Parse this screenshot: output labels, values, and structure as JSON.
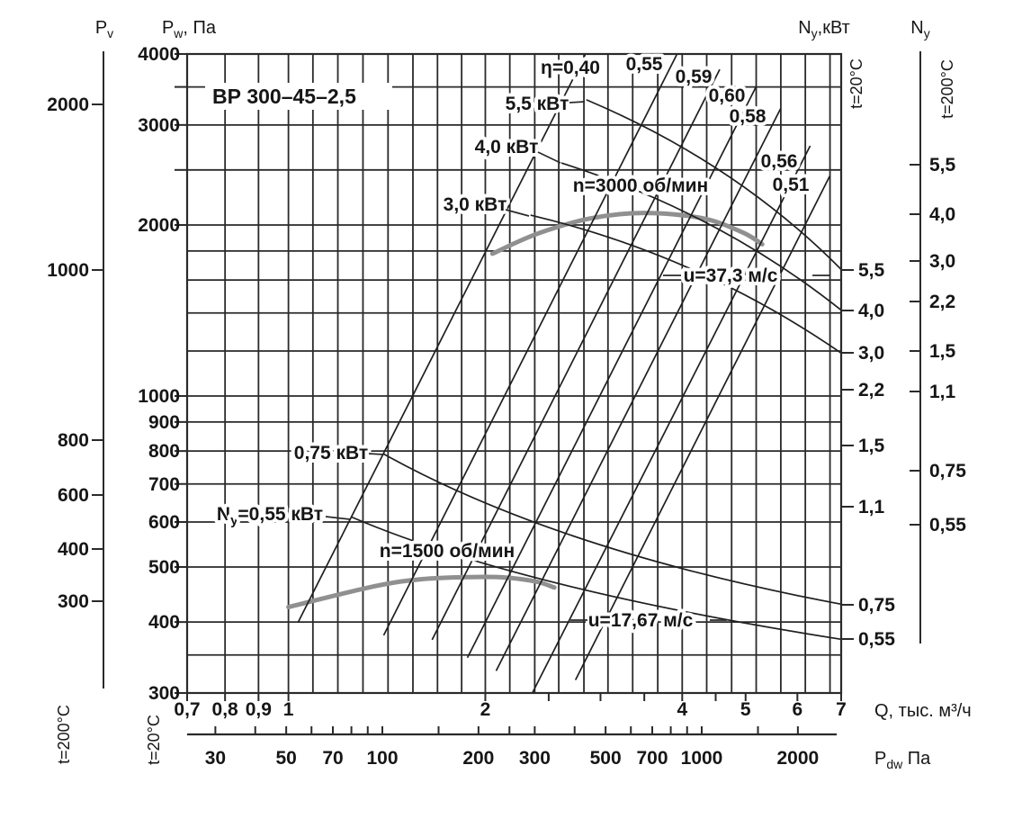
{
  "chart_title": "ВР 300–45–2,5",
  "temp_labels": {
    "t20": "t=20°C",
    "t200": "t=200°C"
  },
  "axis_titles": {
    "pv": {
      "base": "P",
      "sub": "v",
      "rest": ""
    },
    "pw": {
      "base": "P",
      "sub": "w",
      "rest": ", Па"
    },
    "ny20": {
      "base": "N",
      "sub": "y",
      "rest": ",кВт"
    },
    "ny200": {
      "base": "N",
      "sub": "y",
      "rest": ""
    },
    "q_label": "Q, тыс. м³/ч",
    "pdw": {
      "base": "P",
      "sub": "dw",
      "rest": " Па"
    }
  },
  "chart_data": {
    "type": "line",
    "grid": "log-log",
    "x_axis": {
      "label": "Q, тыс. м³/ч",
      "scale": "log",
      "range": [
        0.7,
        7
      ],
      "ticks": [
        "0,7",
        "0,8",
        "0,9",
        "1",
        "2",
        "4",
        "5",
        "6",
        "7"
      ],
      "tick_values": [
        0.7,
        0.8,
        0.9,
        1,
        2,
        4,
        5,
        6,
        7
      ]
    },
    "y_axis_pw": {
      "label": "Pw, Па",
      "condition": "t=20°C",
      "scale": "log",
      "range": [
        300,
        4000
      ],
      "ticks": [
        "4000",
        "3000",
        "2000",
        "1000",
        "900",
        "800",
        "700",
        "600",
        "500",
        "400",
        "300"
      ],
      "tick_values": [
        4000,
        3000,
        2000,
        1000,
        900,
        800,
        700,
        600,
        500,
        400,
        300
      ]
    },
    "y_axis_pv": {
      "label": "Pv",
      "condition": "t=200°C",
      "ticks": [
        "2000",
        "1000",
        "800",
        "600",
        "400",
        "300"
      ],
      "tick_values": [
        2000,
        1000,
        800,
        600,
        400,
        300
      ]
    },
    "y_axis_ny20": {
      "label": "Ny,кВт",
      "condition": "t=20°C",
      "ticks": [
        "5,5",
        "4,0",
        "3,0",
        "2,2",
        "1,5",
        "1,1",
        "0,75",
        "0,55"
      ],
      "tick_values": [
        5.5,
        4.0,
        3.0,
        2.2,
        1.5,
        1.1,
        0.75,
        0.55
      ]
    },
    "y_axis_ny200": {
      "label": "Ny",
      "condition": "t=200°C",
      "ticks": [
        "5,5",
        "4,0",
        "3,0",
        "2,2",
        "1,5",
        "1,1",
        "0,75",
        "0,55"
      ],
      "tick_values": [
        5.5,
        4.0,
        3.0,
        2.2,
        1.5,
        1.1,
        0.75,
        0.55
      ]
    },
    "x_axis_pdw": {
      "label": "Pdw Па",
      "condition": "t=20°C",
      "scale": "log",
      "ticks": [
        "30",
        "50",
        "70",
        "100",
        "200",
        "300",
        "500",
        "700",
        "1000",
        "2000"
      ],
      "tick_values": [
        30,
        50,
        70,
        100,
        200,
        300,
        500,
        700,
        1000,
        2000
      ],
      "minor_tick_values": [
        30,
        40,
        50,
        60,
        70,
        80,
        90,
        100,
        150,
        200,
        250,
        300,
        400,
        500,
        600,
        700,
        800,
        900,
        1000,
        1500,
        2000
      ]
    },
    "series": [
      {
        "id": "n3000",
        "name": "n=3000 об/мин",
        "kind": "fan-characteristic",
        "points": [
          [
            2.05,
            1780
          ],
          [
            2.4,
            1930
          ],
          [
            2.9,
            2055
          ],
          [
            3.5,
            2100
          ],
          [
            4.3,
            2055
          ],
          [
            4.95,
            1940
          ],
          [
            5.3,
            1850
          ]
        ]
      },
      {
        "id": "n1500",
        "name": "n=1500 об/мин",
        "kind": "fan-characteristic",
        "points": [
          [
            1.0,
            425
          ],
          [
            1.35,
            462
          ],
          [
            1.6,
            476
          ],
          [
            1.9,
            480
          ],
          [
            2.15,
            479
          ],
          [
            2.4,
            471
          ],
          [
            2.55,
            460
          ]
        ]
      },
      {
        "id": "p55",
        "name": "5,5 кВт",
        "kind": "power-curve",
        "power_kw": 5.5,
        "points": [
          [
            2.86,
            3320
          ],
          [
            4.65,
            2460
          ],
          [
            7.0,
            1670
          ]
        ]
      },
      {
        "id": "p40",
        "name": "4,0 кВт",
        "kind": "power-curve",
        "power_kw": 4.0,
        "points": [
          [
            2.62,
            2570
          ],
          [
            4.42,
            2000
          ],
          [
            7.0,
            1416
          ]
        ]
      },
      {
        "id": "p30",
        "name": "3,0 кВт",
        "kind": "power-curve",
        "power_kw": 3.0,
        "points": [
          [
            2.35,
            2080
          ],
          [
            4.15,
            1668
          ],
          [
            7.0,
            1190
          ]
        ]
      },
      {
        "id": "p075",
        "name": "0,75 кВт",
        "kind": "power-curve",
        "power_kw": 0.75,
        "points": [
          [
            1.4,
            790
          ],
          [
            2.84,
            558
          ],
          [
            7.0,
            430
          ]
        ]
      },
      {
        "id": "p055",
        "name": "Ny=0,55 кВт",
        "kind": "power-curve",
        "power_kw": 0.55,
        "points": [
          [
            1.25,
            612
          ],
          [
            2.58,
            468
          ],
          [
            7.0,
            373
          ]
        ]
      },
      {
        "id": "e40",
        "name": "η=0,40",
        "kind": "efficiency-line",
        "eta": 0.4,
        "points": [
          [
            1.035,
            400
          ],
          [
            2.84,
            3980
          ]
        ]
      },
      {
        "id": "e55",
        "name": "0,55",
        "kind": "efficiency-line",
        "eta": 0.55,
        "points": [
          [
            1.4,
            380
          ],
          [
            3.92,
            3980
          ]
        ]
      },
      {
        "id": "e59",
        "name": "0,59",
        "kind": "efficiency-line",
        "eta": 0.59,
        "points": [
          [
            1.66,
            373
          ],
          [
            4.56,
            3750
          ]
        ]
      },
      {
        "id": "e60",
        "name": "0,60",
        "kind": "efficiency-line",
        "eta": 0.6,
        "points": [
          [
            1.88,
            347
          ],
          [
            5.18,
            3490
          ]
        ]
      },
      {
        "id": "e58",
        "name": "0,58",
        "kind": "efficiency-line",
        "eta": 0.58,
        "points": [
          [
            2.08,
            329
          ],
          [
            5.65,
            3200
          ]
        ]
      },
      {
        "id": "e56",
        "name": "0,56",
        "kind": "efficiency-line",
        "eta": 0.56,
        "points": [
          [
            2.36,
            300
          ],
          [
            6.27,
            2750
          ]
        ]
      },
      {
        "id": "e51",
        "name": "0,51",
        "kind": "efficiency-line",
        "eta": 0.51,
        "points": [
          [
            2.75,
            317
          ],
          [
            6.72,
            2435
          ]
        ]
      }
    ],
    "annotations": [
      {
        "id": "u3000",
        "text": "u=37,3 м/с"
      },
      {
        "id": "u1500",
        "text": "u=17,67 м/с"
      }
    ]
  },
  "colors": {
    "grid": "#2a2a2a",
    "curve": "#1f1f1f",
    "thick_curve": "#909090",
    "label": "#161616",
    "muted": "#6e6e6e",
    "background": "#ffffff"
  }
}
